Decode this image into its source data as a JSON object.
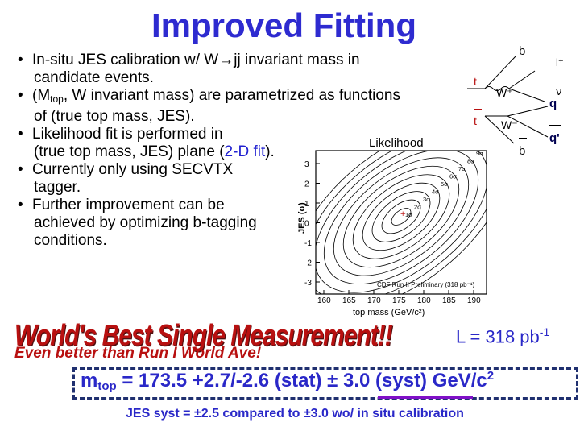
{
  "title": "Improved Fitting",
  "bullets": [
    {
      "lines": [
        "In-situ JES calibration w/ W→jj invariant mass in",
        "candidate events."
      ]
    },
    {
      "lines": [
        "(M",
        "top",
        ", W invariant mass) are parametrized as functions",
        "of (true top mass, JES)."
      ]
    },
    {
      "lines": [
        "Likelihood fit is performed in",
        "(true top mass, JES) plane (",
        "2-D fit",
        ")."
      ]
    },
    {
      "lines": [
        "Currently only using SECVTX",
        "tagger."
      ]
    },
    {
      "lines": [
        "Further improvement can be",
        "achieved by optimizing b-tagging",
        "conditions."
      ]
    }
  ],
  "plot": {
    "title": "Likelihood",
    "ylabel": "JES (σ)",
    "xlabel": "top mass  (GeV/c²)",
    "xticks": [
      "160",
      "165",
      "170",
      "175",
      "180",
      "185",
      "190"
    ],
    "yticks": [
      "3",
      "2",
      "1",
      "0",
      "-1",
      "-2",
      "-3"
    ],
    "sigma_labels": [
      "1σ",
      "2σ",
      "3σ",
      "4σ",
      "5σ",
      "6σ",
      "7σ",
      "8σ",
      "9σ"
    ],
    "watermark": "CDF Run II Preliminary (318 pb⁻¹)"
  },
  "feynman": {
    "labels": [
      "b",
      "l⁺",
      "t",
      "W⁺",
      "ν",
      "q",
      "t",
      "W⁻",
      "q'",
      "b"
    ]
  },
  "worlds_best": "World's Best Single Measurement!!",
  "even_better": "Even better than Run I World Ave!",
  "luminosity": {
    "prefix": "L = 318 pb",
    "exp": "-1"
  },
  "result": {
    "m": "m",
    "sub": "top",
    "text": " = 173.5 +2.7/-2.6 (stat) ± 3.0 (syst) GeV/c",
    "sup": "2"
  },
  "jes_note": "JES syst = ±2.5 compared to ±3.0 wo/ in situ calibration",
  "colors": {
    "title": "#2e2bd0",
    "accent": "#b81010",
    "result": "#2a28c8",
    "underline": "#8010c8"
  }
}
